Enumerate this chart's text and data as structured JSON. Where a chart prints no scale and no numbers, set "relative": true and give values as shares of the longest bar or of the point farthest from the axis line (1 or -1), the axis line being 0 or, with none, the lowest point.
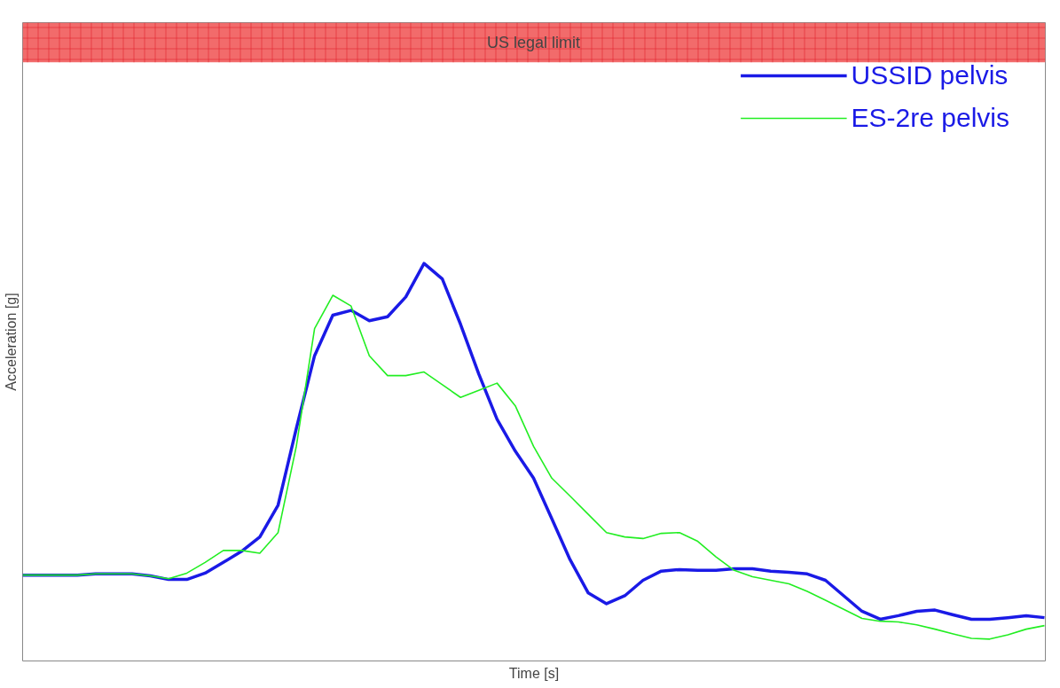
{
  "chart_data": {
    "type": "line",
    "xlabel": "Time [s]",
    "ylabel": "Acceleration [g]",
    "relative": true,
    "grid": false,
    "legend": "top right",
    "categories": [
      null,
      null,
      null,
      null,
      null,
      null,
      null,
      null,
      null,
      null,
      null,
      null,
      null,
      null,
      null,
      null,
      null,
      null,
      null,
      null,
      null,
      null,
      null,
      null,
      null,
      null,
      null,
      null,
      null,
      null,
      null,
      null,
      null,
      null,
      null,
      null,
      null,
      null,
      null,
      null,
      null,
      null,
      null,
      null,
      null,
      null,
      null,
      null,
      null,
      null,
      null,
      null,
      null,
      null,
      null,
      null,
      null
    ],
    "series": [
      {
        "name": "USSID pelvis",
        "color": "#1a1ae6",
        "values": [
          0.216,
          0.216,
          0.216,
          0.216,
          0.219,
          0.219,
          0.219,
          0.214,
          0.205,
          0.205,
          0.221,
          0.248,
          0.276,
          0.312,
          0.392,
          0.585,
          0.768,
          0.87,
          0.882,
          0.856,
          0.866,
          0.916,
          1.0,
          0.961,
          0.847,
          0.722,
          0.608,
          0.528,
          0.46,
          0.358,
          0.255,
          0.171,
          0.144,
          0.164,
          0.203,
          0.226,
          0.23,
          0.228,
          0.228,
          0.232,
          0.232,
          0.226,
          0.223,
          0.219,
          0.203,
          0.164,
          0.125,
          0.105,
          0.114,
          0.125,
          0.128,
          0.116,
          0.105,
          0.105,
          0.109,
          0.114,
          0.109
        ]
      },
      {
        "name": "ES-2re pelvis",
        "color": "#22ee22",
        "values": [
          0.216,
          0.216,
          0.216,
          0.216,
          0.219,
          0.219,
          0.219,
          0.214,
          0.207,
          0.221,
          0.248,
          0.278,
          0.278,
          0.271,
          0.323,
          0.54,
          0.836,
          0.92,
          0.893,
          0.768,
          0.718,
          0.718,
          0.727,
          0.695,
          0.663,
          0.681,
          0.699,
          0.642,
          0.54,
          0.46,
          0.415,
          0.369,
          0.323,
          0.312,
          0.308,
          0.321,
          0.323,
          0.301,
          0.262,
          0.228,
          0.212,
          0.203,
          0.194,
          0.175,
          0.153,
          0.13,
          0.107,
          0.1,
          0.098,
          0.091,
          0.08,
          0.068,
          0.057,
          0.055,
          0.066,
          0.08,
          0.089
        ]
      }
    ],
    "bands": [
      {
        "axis": "y",
        "from": 1.506,
        "to": 1.606,
        "label": "US legal limit",
        "color": "#f26b6b"
      }
    ]
  }
}
